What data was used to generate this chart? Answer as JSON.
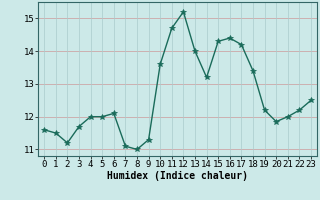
{
  "x": [
    0,
    1,
    2,
    3,
    4,
    5,
    6,
    7,
    8,
    9,
    10,
    11,
    12,
    13,
    14,
    15,
    16,
    17,
    18,
    19,
    20,
    21,
    22,
    23
  ],
  "y": [
    11.6,
    11.5,
    11.2,
    11.7,
    12.0,
    12.0,
    12.1,
    11.1,
    11.0,
    11.3,
    13.6,
    14.7,
    15.2,
    14.0,
    13.2,
    14.3,
    14.4,
    14.2,
    13.4,
    12.2,
    11.85,
    12.0,
    12.2,
    12.5
  ],
  "line_color": "#1a6b5a",
  "marker": "*",
  "marker_size": 4,
  "bg_color": "#cce9e8",
  "grid_color_h": "#cc9999",
  "grid_color_v": "#aacccc",
  "xlabel": "Humidex (Indice chaleur)",
  "xlim": [
    -0.5,
    23.5
  ],
  "ylim": [
    10.8,
    15.5
  ],
  "yticks": [
    11,
    12,
    13,
    14,
    15
  ],
  "xticks": [
    0,
    1,
    2,
    3,
    4,
    5,
    6,
    7,
    8,
    9,
    10,
    11,
    12,
    13,
    14,
    15,
    16,
    17,
    18,
    19,
    20,
    21,
    22,
    23
  ],
  "label_fontsize": 7,
  "tick_fontsize": 6.5
}
